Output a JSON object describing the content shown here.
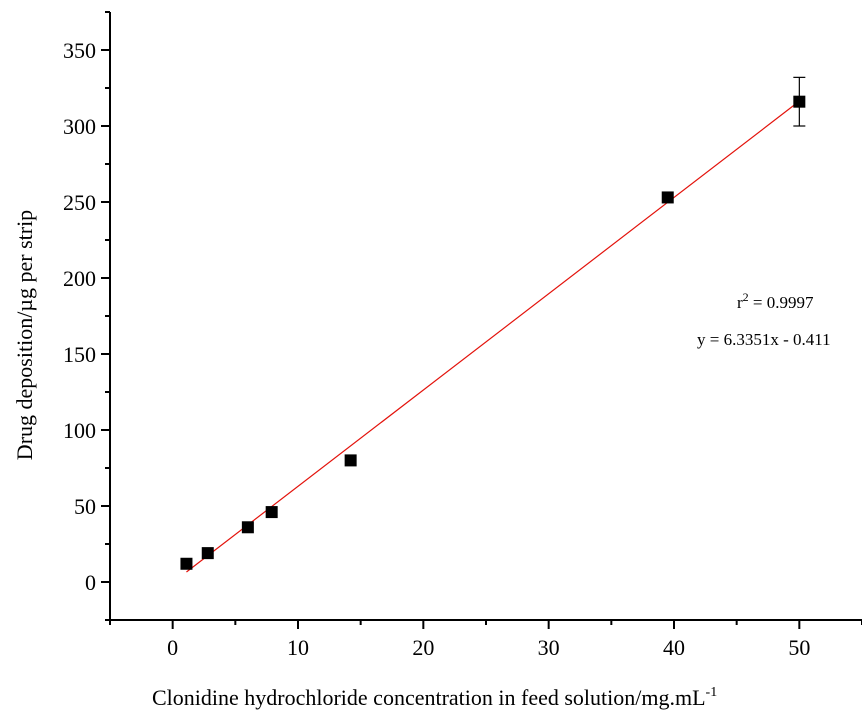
{
  "chart_data": {
    "type": "scatter",
    "title": "",
    "xlabel": "Clonidine hydrochloride concentration in feed solution/mg.mL",
    "xlabel_superscript": "-1",
    "ylabel": "Drug deposition/µg per strip",
    "xlim": [
      -5,
      55
    ],
    "ylim": [
      -25,
      375
    ],
    "x_ticks": [
      0,
      10,
      20,
      30,
      40,
      50
    ],
    "y_ticks": [
      0,
      50,
      100,
      150,
      200,
      250,
      300,
      350
    ],
    "x_minor_step": 5,
    "y_minor_step": 25,
    "grid": false,
    "marker": "square",
    "marker_color": "#000000",
    "series": [
      {
        "x": [
          1.1,
          2.8,
          6.0,
          7.9,
          14.2,
          39.5,
          50.0
        ],
        "y": [
          12,
          19,
          36,
          46,
          80,
          253,
          316
        ],
        "yerr": [
          0,
          0,
          0,
          0,
          0,
          0,
          16
        ]
      }
    ],
    "fit_line": {
      "slope": 6.3351,
      "intercept": -0.411,
      "x_range": [
        1.1,
        50.0
      ],
      "color": "#e3120b"
    },
    "annotations": {
      "r2_prefix": "r",
      "r2_superscript": "2",
      "r2_value": " = 0.9997",
      "equation": "y = 6.3351x - 0.411"
    }
  }
}
